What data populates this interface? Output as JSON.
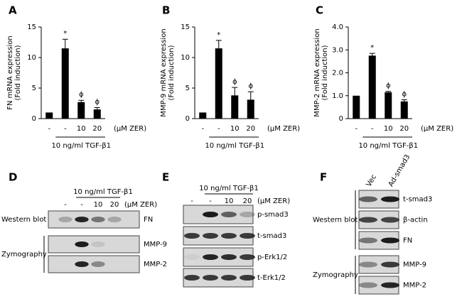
{
  "chart_data": [
    {
      "type": "bar",
      "panel": "A",
      "y_label": [
        "FN mRNA expression",
        "(Fold induction)"
      ],
      "categories": [
        "-",
        "-",
        "10",
        "20"
      ],
      "values": [
        1,
        11.5,
        2.7,
        1.5
      ],
      "errors": [
        0,
        1.5,
        0.3,
        0.3
      ],
      "annotations": [
        null,
        "*",
        "ϕ",
        "ϕ"
      ],
      "dose_unit": "(μM ZER)",
      "treatment": "10 ng/ml TGF-β1",
      "color": "#000000",
      "ylim": [
        0,
        15
      ],
      "yticks": [
        0,
        5,
        10,
        15
      ]
    },
    {
      "type": "bar",
      "panel": "B",
      "y_label": [
        "MMP-9 mRNA expression",
        "(Fold induction)"
      ],
      "categories": [
        "-",
        "-",
        "10",
        "20"
      ],
      "values": [
        1,
        11.5,
        3.8,
        3.1
      ],
      "errors": [
        0,
        1.3,
        1.3,
        1.3
      ],
      "annotations": [
        null,
        "*",
        "ϕ",
        "ϕ"
      ],
      "dose_unit": "(μM ZER)",
      "treatment": "10 ng/ml TGF-β1",
      "color": "#000000",
      "ylim": [
        0,
        15
      ],
      "yticks": [
        0,
        5,
        10,
        15
      ]
    },
    {
      "type": "bar",
      "panel": "C",
      "y_label": [
        "MMP-2 mRNA expression",
        "(Fold induction)"
      ],
      "categories": [
        "-",
        "-",
        "10",
        "20"
      ],
      "values": [
        1,
        2.75,
        1.15,
        0.75
      ],
      "errors": [
        0,
        0.1,
        0.04,
        0.07
      ],
      "annotations": [
        null,
        "*",
        "ϕ",
        "ϕ"
      ],
      "dose_unit": "(μM ZER)",
      "treatment": "10 ng/ml TGF-β1",
      "color": "#000000",
      "ylim": [
        0,
        4
      ],
      "yticks": [
        0,
        {
          "value": 1,
          "label": "1.0"
        },
        {
          "value": 2,
          "label": "2.0"
        },
        {
          "value": 3,
          "label": "3.0"
        },
        {
          "value": 4,
          "label": "4.0"
        }
      ]
    }
  ],
  "blots": [
    {
      "panel": "D",
      "treatment": "10 ng/ml TGF-β1",
      "lanes": [
        "-",
        "-",
        "10",
        "20"
      ],
      "dose_unit": "(μM ZER)",
      "groups": [
        {
          "label": "Western blot",
          "rows": [
            "FN"
          ]
        },
        {
          "label": "Zymography",
          "rows": [
            "MMP-9",
            "MMP-2"
          ]
        }
      ]
    },
    {
      "panel": "E",
      "treatment": "10 ng/ml TGF-β1",
      "lanes": [
        "-",
        "-",
        "10",
        "20"
      ],
      "dose_unit": "(μM ZER)",
      "groups": [
        {
          "rows": [
            "p-smad3",
            "t-smad3",
            "p-Erk1/2",
            "t-Erk1/2"
          ]
        }
      ]
    },
    {
      "panel": "F",
      "lanes": [
        "Vec",
        "Ad-smad3"
      ],
      "groups": [
        {
          "label": "Western blot",
          "rows": [
            "t-smad3",
            "β-actin",
            "FN"
          ]
        },
        {
          "label": "Zymography",
          "rows": [
            "MMP-9",
            "MMP-2"
          ]
        }
      ]
    }
  ]
}
